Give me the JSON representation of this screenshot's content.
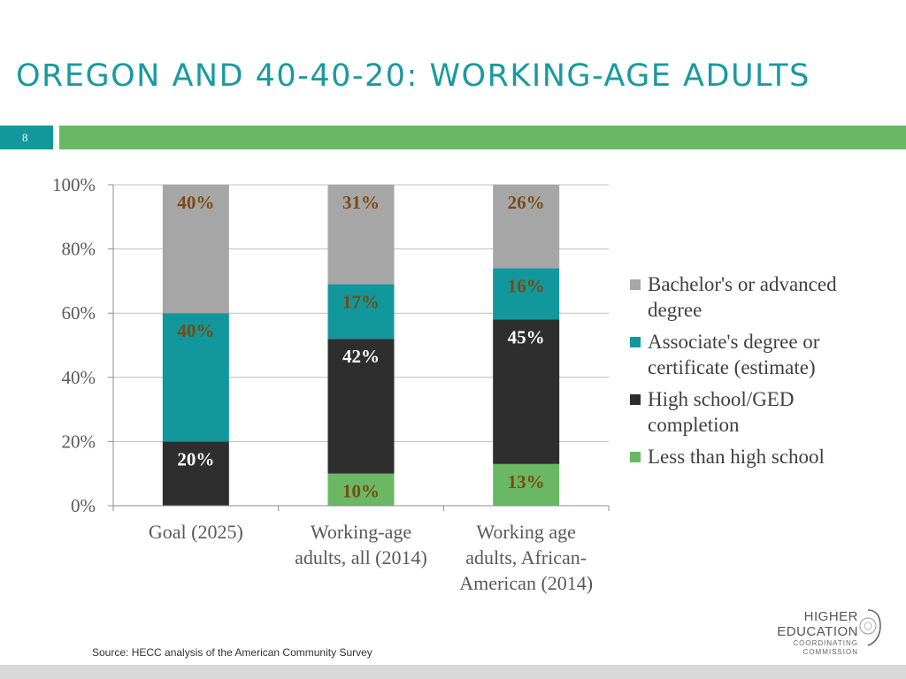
{
  "slide": {
    "title": "OREGON AND 40-40-20: WORKING-AGE ADULTS",
    "page_number": "8",
    "source": "Source: HECC analysis of the American Community Survey",
    "colors": {
      "title": "#1a9aa0",
      "badge": "#12979c",
      "rule": "#6ab863",
      "footer": "#d9d9d9"
    }
  },
  "logo": {
    "line1": "HIGHER",
    "line2": "EDUCATION",
    "line3": "COORDINATING",
    "line4": "COMMISSION",
    "seal_icon": "state-seal-icon"
  },
  "chart_data": {
    "type": "bar",
    "stacked": true,
    "title": "",
    "xlabel": "",
    "ylabel": "",
    "ylim": [
      0,
      100
    ],
    "yticks": [
      "0%",
      "20%",
      "40%",
      "60%",
      "80%",
      "100%"
    ],
    "ytick_values": [
      0,
      20,
      40,
      60,
      80,
      100
    ],
    "grid": true,
    "legend_position": "right",
    "categories": [
      [
        "Goal (2025)"
      ],
      [
        "Working-age",
        "adults, all (2014)"
      ],
      [
        "Working age",
        "adults, African-",
        "American (2014)"
      ]
    ],
    "series": [
      {
        "name": "Less than high school",
        "legend_lines": [
          "Less than high school"
        ],
        "color": "#6ab863",
        "label_color": "#7a4a14",
        "values": [
          0,
          10,
          13
        ],
        "labels": [
          "",
          "10%",
          "13%"
        ]
      },
      {
        "name": "High school/GED completion",
        "legend_lines": [
          "High school/GED",
          "completion"
        ],
        "color": "#2e2e2e",
        "label_color": "#ffffff",
        "values": [
          20,
          42,
          45
        ],
        "labels": [
          "20%",
          "42%",
          "45%"
        ]
      },
      {
        "name": "Associate's degree or certificate (estimate)",
        "legend_lines": [
          "Associate's degree or",
          "certificate (estimate)"
        ],
        "color": "#12979c",
        "label_color": "#7a4a14",
        "values": [
          40,
          17,
          16
        ],
        "labels": [
          "40%",
          "17%",
          "16%"
        ]
      },
      {
        "name": "Bachelor's or advanced degree",
        "legend_lines": [
          "Bachelor's or advanced",
          "degree"
        ],
        "color": "#a6a6a6",
        "label_color": "#7a4a14",
        "values": [
          40,
          31,
          26
        ],
        "labels": [
          "40%",
          "31%",
          "26%"
        ]
      }
    ]
  }
}
